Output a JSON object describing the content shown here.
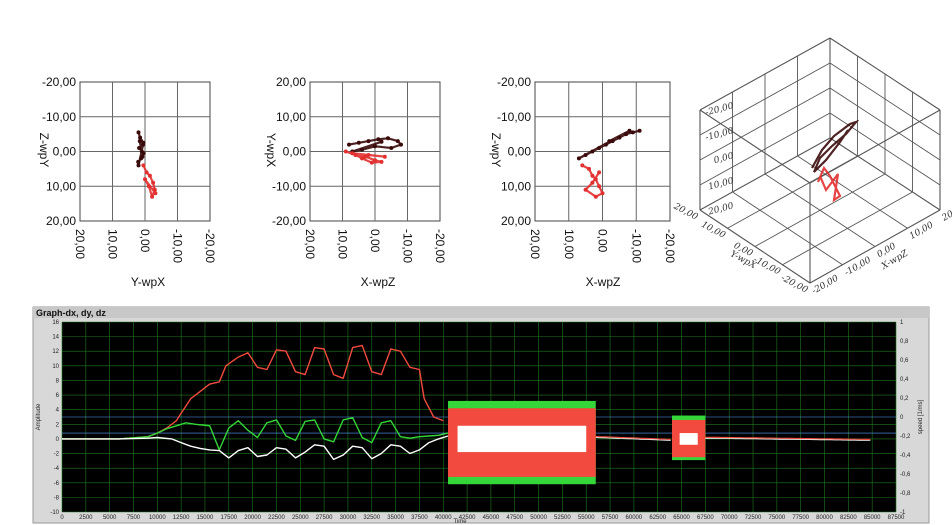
{
  "chart_data": [
    {
      "type": "scatter",
      "xlabel": "Y-wpX",
      "ylabel": "Z-wpY",
      "x_ticks": [
        "20,00",
        "10,00",
        "0,00",
        "-10,00",
        "-20,00"
      ],
      "y_ticks": [
        "-20,00",
        "-10,00",
        "0,00",
        "10,00",
        "20,00"
      ],
      "xlim": [
        20,
        -20
      ],
      "ylim": [
        -20,
        20
      ],
      "grid": true,
      "series": [
        {
          "color": "#3a0a0a",
          "x": [
            2,
            1.5,
            0.5,
            1.8,
            0.4,
            1.2,
            2.1,
            0.8,
            1.6,
            1.0,
            2.0,
            0.6
          ],
          "y": [
            -5.5,
            -4,
            -2.5,
            -1,
            0.5,
            2,
            3,
            1.5,
            -3,
            0,
            4,
            -2
          ]
        },
        {
          "color": "#e23030",
          "x": [
            0.5,
            -0.5,
            -1.5,
            -2.5,
            -3,
            -2.2,
            -1.2,
            0,
            -3.2
          ],
          "y": [
            4,
            6,
            7,
            9,
            11,
            13,
            10,
            8,
            12
          ]
        }
      ]
    },
    {
      "type": "scatter",
      "xlabel": "X-wpZ",
      "ylabel": "Y-wpX",
      "x_ticks": [
        "20,00",
        "10,00",
        "0,00",
        "-10,00",
        "-20,00"
      ],
      "y_ticks": [
        "20,00",
        "10,00",
        "0,00",
        "-10,00",
        "-20,00"
      ],
      "xlim": [
        20,
        -20
      ],
      "ylim": [
        20,
        -20
      ],
      "grid": true,
      "series": [
        {
          "color": "#3a0a0a",
          "x": [
            8,
            5,
            2,
            -1,
            -4,
            -7,
            -8,
            -5,
            0,
            4,
            7,
            -2
          ],
          "y": [
            2,
            2.5,
            3,
            3.5,
            3.8,
            3,
            2,
            1,
            1.5,
            0.5,
            0,
            2.8
          ]
        },
        {
          "color": "#e23030",
          "x": [
            9,
            6,
            3,
            0,
            -2,
            1,
            4,
            7,
            -3,
            2
          ],
          "y": [
            0,
            -1,
            -1.5,
            -2.5,
            -3,
            -3.2,
            -2,
            -0.5,
            -1.5,
            -1
          ]
        }
      ]
    },
    {
      "type": "scatter",
      "xlabel": "X-wpZ",
      "ylabel": "Z-wpY",
      "x_ticks": [
        "20,00",
        "10,00",
        "0,00",
        "-10,00",
        "-20,00"
      ],
      "y_ticks": [
        "-20,00",
        "-10,00",
        "0,00",
        "10,00",
        "20,00"
      ],
      "xlim": [
        20,
        -20
      ],
      "ylim": [
        -20,
        20
      ],
      "grid": true,
      "series": [
        {
          "color": "#3a0a0a",
          "x": [
            -11,
            -9,
            -7,
            -5,
            -3,
            -1,
            1,
            3,
            5,
            7,
            -8,
            -2
          ],
          "y": [
            -6,
            -5.5,
            -5,
            -4,
            -3,
            -2,
            -1,
            0,
            1,
            2,
            -6,
            -3
          ]
        },
        {
          "color": "#e23030",
          "x": [
            6,
            4,
            3,
            2,
            1,
            0,
            2,
            5,
            3,
            1
          ],
          "y": [
            4,
            5,
            7,
            8,
            10,
            12,
            13,
            11,
            9,
            6
          ]
        }
      ]
    },
    {
      "type": "scatter",
      "axis_ticks": [
        "-20,00",
        "-10,00",
        "0,00",
        "10,00",
        "20,00"
      ],
      "depth_ticks": [
        "20,00",
        "10,00",
        "0,00",
        "-10,00",
        "-20,00"
      ],
      "side_ticks": [
        "-20,00",
        "-10,00",
        "0,00",
        "10,00",
        "20,00"
      ],
      "axis_labels": [
        "Y-wpX",
        "X-wpZ"
      ],
      "grid": true
    },
    {
      "type": "line",
      "title": "Graph-dx, dy, dz",
      "xlabel": "Time",
      "ylabel": "Amplitude",
      "y2label": "speed [1/ms]",
      "xlim": [
        0,
        87500
      ],
      "ylim": [
        -10,
        16
      ],
      "y2lim": [
        -1,
        1
      ],
      "x_ticks": [
        0,
        2500,
        5000,
        7500,
        10000,
        12500,
        15000,
        17500,
        20000,
        22500,
        25000,
        27500,
        30000,
        32500,
        35000,
        37500,
        40000,
        42500,
        45000,
        47500,
        50000,
        52500,
        55000,
        57500,
        60000,
        62500,
        65000,
        67500,
        70000,
        72500,
        75000,
        77500,
        80000,
        82500,
        85000,
        87500
      ],
      "y_ticks": [
        16,
        14,
        12,
        10,
        8,
        6,
        4,
        2,
        0,
        -2,
        -4,
        -6,
        -8,
        -10
      ],
      "y2_ticks": [
        "1",
        "0,8",
        "0,6",
        "0,4",
        "0,2",
        "0",
        "-0,2",
        "-0,4",
        "-0,6",
        "-0,8",
        "-1"
      ],
      "grid": true,
      "background": "#000000",
      "series": [
        {
          "color": "#f24a3f",
          "x": [
            0,
            3000,
            6000,
            9000,
            10000,
            11000,
            12000,
            12500,
            13500,
            14500,
            15500,
            16500,
            17200,
            18500,
            19500,
            20500,
            21500,
            22500,
            23500,
            24500,
            25500,
            26500,
            27500,
            28500,
            29500,
            30500,
            31500,
            32500,
            33500,
            34500,
            35500,
            36500,
            37500,
            38000,
            39000,
            40000
          ],
          "y": [
            0,
            0,
            0,
            0.3,
            0.8,
            1.5,
            2.5,
            3.5,
            5.5,
            6.5,
            7.5,
            7.8,
            10,
            11.2,
            11.8,
            9.8,
            9.5,
            12.2,
            12,
            9.2,
            8.8,
            12.5,
            12.3,
            8.8,
            8.3,
            12.5,
            12.8,
            9.2,
            8.8,
            12.3,
            12,
            9.8,
            9.5,
            5.5,
            3,
            2.5
          ]
        },
        {
          "color": "#35d63a",
          "x": [
            0,
            3000,
            6000,
            9000,
            10000,
            11000,
            12000,
            13000,
            14000,
            15500,
            16500,
            17500,
            18500,
            19500,
            20500,
            21500,
            22500,
            23500,
            24500,
            25500,
            26500,
            27500,
            28500,
            29500,
            30500,
            31500,
            32500,
            33500,
            34500,
            35500,
            36500,
            37500,
            38500,
            39500,
            40500
          ],
          "y": [
            0,
            0,
            0,
            0.3,
            0.8,
            1.4,
            1.8,
            2.2,
            2,
            1.8,
            -1.5,
            1.5,
            2.5,
            1.2,
            0.2,
            2.2,
            2.6,
            0.4,
            -0.2,
            2.4,
            2.6,
            0,
            -0.4,
            2.6,
            2.9,
            0.2,
            -0.5,
            2.2,
            2.5,
            0.3,
            0.1,
            0.3,
            0.4,
            0.5,
            0.8
          ]
        },
        {
          "color": "#ffffff",
          "x": [
            0,
            3000,
            6000,
            9000,
            10000,
            11500,
            12500,
            13500,
            14500,
            15500,
            16500,
            17500,
            18500,
            19500,
            20500,
            21500,
            22500,
            23500,
            24500,
            25500,
            26500,
            27500,
            28500,
            29500,
            30500,
            31500,
            32500,
            33500,
            34500,
            35500,
            36500,
            37500,
            38500,
            39500,
            40500
          ],
          "y": [
            0,
            0,
            0,
            0.1,
            0.2,
            0,
            -0.5,
            -1,
            -1.3,
            -1.5,
            -1.6,
            -2.6,
            -1.6,
            -1.2,
            -2.4,
            -2.2,
            -1.2,
            -1.4,
            -2.6,
            -1.8,
            -0.8,
            -1,
            -2.8,
            -2.2,
            -1,
            -1.2,
            -2.7,
            -2,
            -0.8,
            -1,
            -2,
            -1.5,
            -0.5,
            0,
            0.4
          ]
        }
      ],
      "bands": [
        {
          "color": "#35d63a",
          "x": [
            40500,
            56000
          ],
          "y": [
            -6.2,
            5.2
          ]
        },
        {
          "color": "#f24a3f",
          "x": [
            40500,
            56000
          ],
          "y": [
            -5.2,
            4.2
          ]
        },
        {
          "color": "#ffffff",
          "x": [
            41500,
            55000
          ],
          "y": [
            -1.8,
            1.8
          ]
        },
        {
          "color": "#35d63a",
          "x": [
            64000,
            67500
          ],
          "y": [
            -2.9,
            3.2
          ]
        },
        {
          "color": "#f24a3f",
          "x": [
            64000,
            67500
          ],
          "y": [
            -2.5,
            2.6
          ]
        },
        {
          "color": "#ffffff",
          "x": [
            64800,
            66700
          ],
          "y": [
            -0.8,
            0.8
          ]
        }
      ],
      "tails": [
        {
          "x": [
            56000,
            64000
          ],
          "y": [
            0.6,
            0.2
          ]
        },
        {
          "x": [
            67500,
            85000
          ],
          "y": [
            0.5,
            0.2
          ]
        }
      ]
    }
  ]
}
